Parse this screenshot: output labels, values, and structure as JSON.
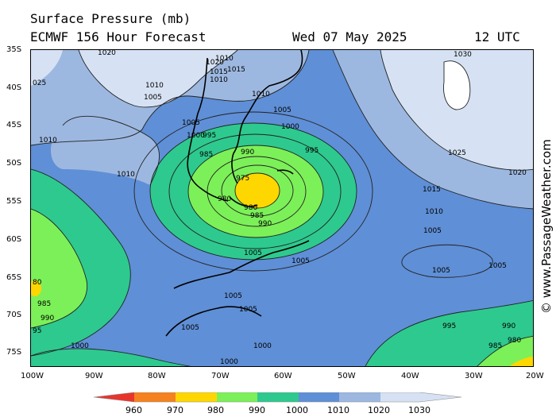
{
  "header": {
    "title_line1": "Surface Pressure (mb)",
    "title_line2": "ECMWF 156 Hour Forecast",
    "date": "Wed 07 May 2025",
    "time": "12 UTC"
  },
  "credit": "© www.PassageWeather.com",
  "axes": {
    "lat_labels": [
      "35S",
      "40S",
      "45S",
      "50S",
      "55S",
      "60S",
      "65S",
      "70S",
      "75S"
    ],
    "lon_labels": [
      "100W",
      "90W",
      "80W",
      "70W",
      "60W",
      "50W",
      "40W",
      "30W",
      "20W"
    ]
  },
  "legend": {
    "ticks": [
      "960",
      "970",
      "980",
      "990",
      "1000",
      "1010",
      "1020",
      "1030"
    ],
    "colors": [
      "#e8352c",
      "#f5821f",
      "#ffd700",
      "#7cf058",
      "#2ec98e",
      "#5f8fd6",
      "#9db8e0",
      "#d6e2f3"
    ]
  },
  "contour_labels": [
    {
      "text": "1020"
    },
    {
      "text": "1020"
    },
    {
      "text": "1010"
    },
    {
      "text": "1015"
    },
    {
      "text": "1015"
    },
    {
      "text": "1010"
    },
    {
      "text": "1010"
    },
    {
      "text": "1005"
    },
    {
      "text": "1010"
    },
    {
      "text": "1005"
    },
    {
      "text": "1005"
    },
    {
      "text": "1000"
    },
    {
      "text": "1000"
    },
    {
      "text": "995"
    },
    {
      "text": "985"
    },
    {
      "text": "990"
    },
    {
      "text": "995"
    },
    {
      "text": "975"
    },
    {
      "text": "980"
    },
    {
      "text": "980"
    },
    {
      "text": "985"
    },
    {
      "text": "990"
    },
    {
      "text": "1010"
    },
    {
      "text": "1010"
    },
    {
      "text": "1030"
    },
    {
      "text": "1025"
    },
    {
      "text": "1020"
    },
    {
      "text": "1015"
    },
    {
      "text": "1010"
    },
    {
      "text": "1005"
    },
    {
      "text": "1005"
    },
    {
      "text": "1005"
    },
    {
      "text": "1005"
    },
    {
      "text": "1005"
    },
    {
      "text": "1005"
    },
    {
      "text": "1005"
    },
    {
      "text": "1005"
    },
    {
      "text": "1000"
    },
    {
      "text": "1000"
    },
    {
      "text": "1000"
    },
    {
      "text": "995"
    },
    {
      "text": "990"
    },
    {
      "text": "985"
    },
    {
      "text": "980"
    },
    {
      "text": "985"
    },
    {
      "text": "990"
    },
    {
      "text": "95"
    },
    {
      "text": "80"
    },
    {
      "text": "025"
    }
  ]
}
